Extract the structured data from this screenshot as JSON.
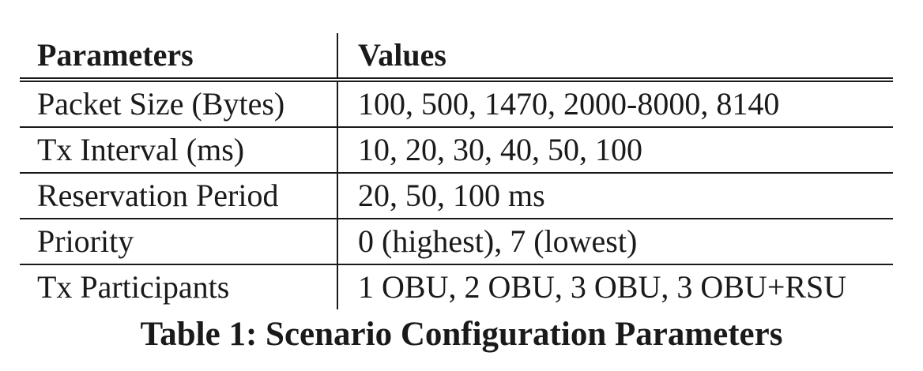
{
  "table": {
    "headers": [
      "Parameters",
      "Values"
    ],
    "rows": [
      [
        "Packet Size (Bytes)",
        "100, 500, 1470, 2000-8000, 8140"
      ],
      [
        "Tx Interval (ms)",
        "10, 20, 30, 40, 50, 100"
      ],
      [
        "Reservation Period",
        "20, 50, 100 ms"
      ],
      [
        "Priority",
        "0 (highest), 7 (lowest)"
      ],
      [
        "Tx Participants",
        "1 OBU, 2 OBU, 3 OBU, 3 OBU+RSU"
      ]
    ]
  },
  "caption": "Table 1: Scenario Configuration Parameters"
}
